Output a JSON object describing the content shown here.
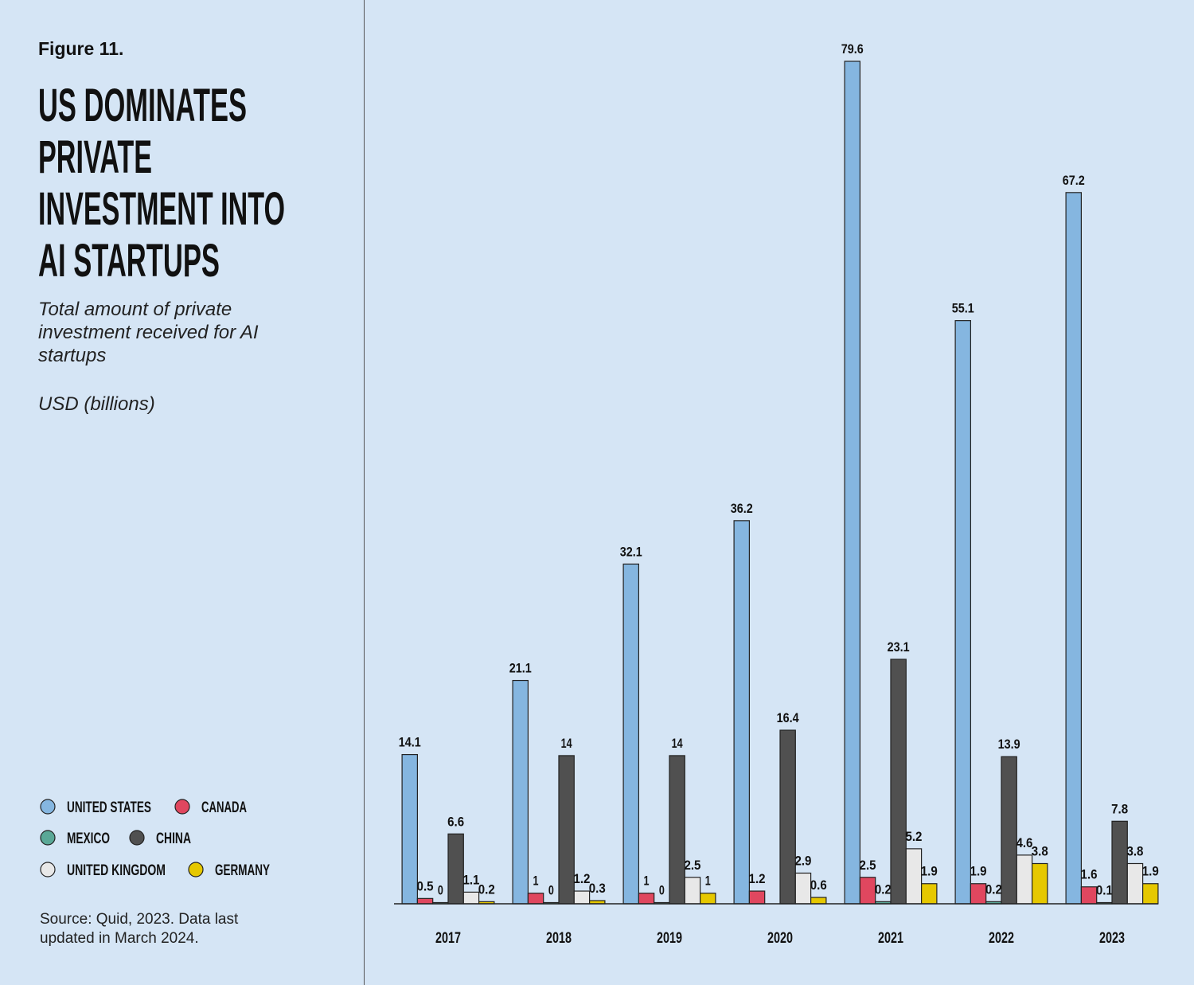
{
  "chart_data": {
    "type": "bar",
    "figure_label": "Figure 11.",
    "title_lines": [
      "US DOMINATES",
      "PRIVATE",
      "INVESTMENT INTO",
      "AI STARTUPS"
    ],
    "subtitle": "Total amount of private investment received for AI startups",
    "unit": "USD (billions)",
    "source": "Source: Quid, 2023. Data last updated in March 2024.",
    "categories": [
      "2017",
      "2018",
      "2019",
      "2020",
      "2021",
      "2022",
      "2023"
    ],
    "series": [
      {
        "name": "UNITED STATES",
        "color": "#85b6e0",
        "values": [
          14.1,
          21.1,
          32.1,
          36.2,
          79.6,
          55.1,
          67.2
        ]
      },
      {
        "name": "CANADA",
        "color": "#e0475f",
        "values": [
          0.5,
          1,
          1,
          1.2,
          2.5,
          1.9,
          1.6
        ]
      },
      {
        "name": "MEXICO",
        "color": "#5aa897",
        "values": [
          0,
          0,
          0,
          null,
          0.2,
          0.2,
          0.1
        ]
      },
      {
        "name": "CHINA",
        "color": "#505050",
        "values": [
          6.6,
          14,
          14,
          16.4,
          23.1,
          13.9,
          7.8
        ]
      },
      {
        "name": "UNITED KINGDOM",
        "color": "#e8e8e8",
        "values": [
          1.1,
          1.2,
          2.5,
          2.9,
          5.2,
          4.6,
          3.8
        ]
      },
      {
        "name": "GERMANY",
        "color": "#e6c800",
        "values": [
          0.2,
          0.3,
          1,
          0.6,
          1.9,
          3.8,
          1.9
        ]
      }
    ]
  }
}
